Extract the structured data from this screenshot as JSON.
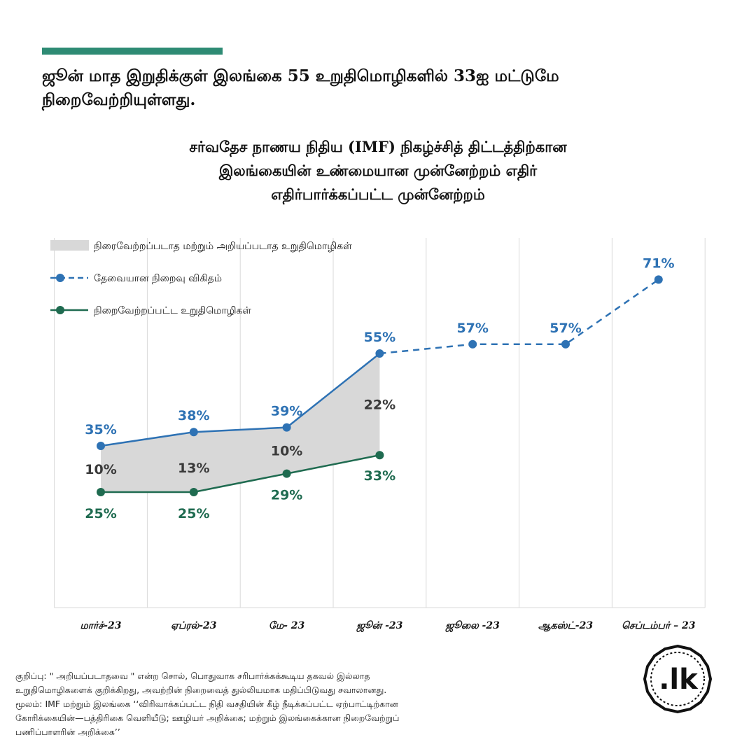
{
  "headline": {
    "line1": "ஜூன் மாத இறுதிக்குள் இலங்கை 55 உறுதிமொழிகளில் 33ஐ மட்டுமே",
    "line2": "நிறைவேற்றியுள்ளது."
  },
  "chart_title_lines": [
    "சர்வதேச நாணய நிதிய (IMF) நிகழ்ச்சித் திட்டத்திற்கான",
    "இலங்கையின் உண்மையான முன்னேற்றம் எதிர்",
    "எதிர்பார்க்கப்பட்ட முன்னேற்றம்"
  ],
  "colors": {
    "accent": "#2e8b74",
    "required": "#2e72b4",
    "fulfilled": "#1f6b50",
    "gap_fill": "#d8d8d8",
    "gap_label": "#3a3a3a",
    "grid": "#d9d9d9"
  },
  "chart_data": {
    "type": "line",
    "categories": [
      "மார்ச்-23",
      "ஏப்ரல்-23",
      "மே- 23",
      "ஜூன் -23",
      "ஜூலை -23",
      "ஆகஸ்ட்-23",
      "செப்டம்பர் – 23"
    ],
    "ylim": [
      0,
      80
    ],
    "grid": "vertical",
    "legend_position": "top-left",
    "series": [
      {
        "name": "தேவையான நிறைவு விகிதம்",
        "values": [
          35,
          38,
          39,
          55,
          57,
          57,
          71
        ],
        "labels": [
          "35%",
          "38%",
          "39%",
          "55%",
          "57%",
          "57%",
          "71%"
        ],
        "dashed_from_index": 3
      },
      {
        "name": "நிறைவேற்றப்பட்ட உறுதிமொழிகள்",
        "values": [
          25,
          25,
          29,
          33,
          null,
          null,
          null
        ],
        "labels": [
          "25%",
          "25%",
          "29%",
          "33%",
          null,
          null,
          null
        ]
      }
    ],
    "gap_area": {
      "name": "நிரைவேற்றப்படாத மற்றும் அறியப்படாத உறுதிமொழிகள்",
      "values": [
        10,
        13,
        10,
        22
      ],
      "labels": [
        "10%",
        "13%",
        "10%",
        "22%"
      ]
    }
  },
  "footnote": {
    "line1": "குறிப்பு: \" அறியப்படாதவை \" என்ற சொல், பொதுவாக சரிபார்க்கக்கூடிய தகவல் இல்லாத",
    "line2": "உறுதிமொழிகளைக் குறிக்கிறது, அவற்றின் நிறைவைத் துல்லியமாக மதிப்பிடுவது சவாலானது.",
    "line3": "மூலம்: IMF மற்றும் இலங்கை ‘‘விரிவாக்கப்பட்ட நிதி வசதியின் கீழ் நீடிக்கப்பட்ட ஏற்பாட்டிற்கான",
    "line4": "கோரிக்கையின்—பத்திரிகை வெளியீடு; ஊழியர் அறிக்கை; மற்றும் இலங்கைக்கான நிறைவேற்றுப்",
    "line5": "பணிப்பாளரின் அறிக்கை’’"
  },
  "logo": {
    "text": ".lk"
  }
}
